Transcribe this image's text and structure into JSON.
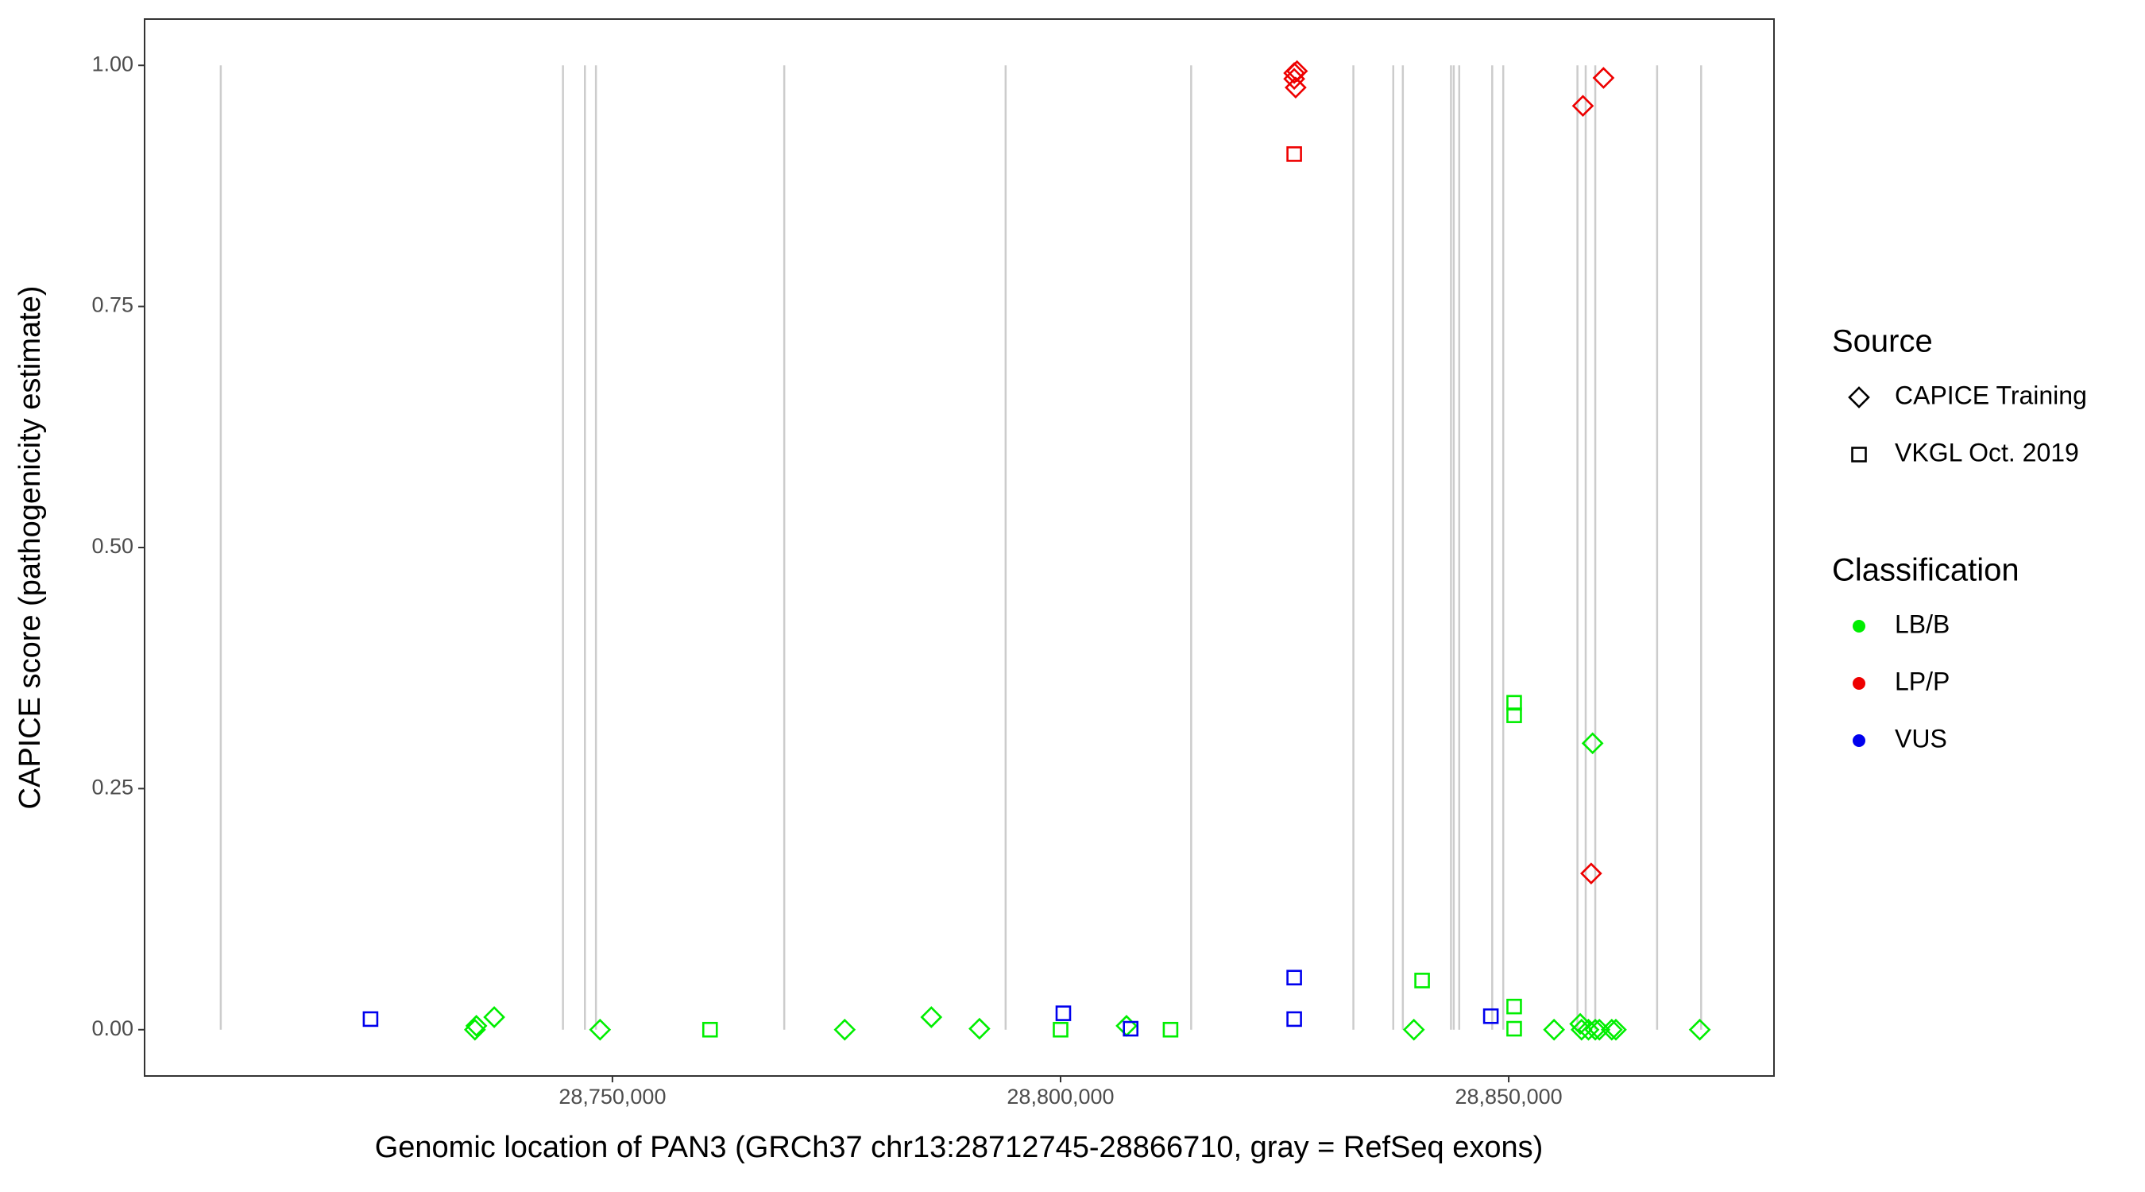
{
  "chart_data": {
    "type": "scatter",
    "x_label": "Genomic location of PAN3 (GRCh37 chr13:28712745-28866710, gray = RefSeq exons)",
    "y_label": "CAPICE score (pathogenicity estimate)",
    "xlim": [
      28697800,
      28879600
    ],
    "ylim": [
      -0.048,
      1.048
    ],
    "xticks": [
      {
        "value": 28750000,
        "label": "28,750,000"
      },
      {
        "value": 28800000,
        "label": "28,800,000"
      },
      {
        "value": 28850000,
        "label": "28,850,000"
      }
    ],
    "yticks": [
      {
        "value": 0,
        "label": "0.00"
      },
      {
        "value": 0.25,
        "label": "0.25"
      },
      {
        "value": 0.5,
        "label": "0.50"
      },
      {
        "value": 0.75,
        "label": "0.75"
      },
      {
        "value": 1,
        "label": "1.00"
      }
    ],
    "grid": false,
    "exon_color": "#cccccc",
    "exon_yrange": [
      0,
      1
    ],
    "exons": [
      28706300,
      28744480,
      28746930,
      28748160,
      28769170,
      28793870,
      28814570,
      28832670,
      28837120,
      28838190,
      28843560,
      28843870,
      28844480,
      28848160,
      28849390,
      28857670,
      28858590,
      28859660,
      28866560,
      28871470
    ],
    "legends": [
      {
        "title": "Source",
        "items": [
          {
            "label": "CAPICE Training",
            "shape": "diamond"
          },
          {
            "label": "VKGL Oct. 2019",
            "shape": "square"
          }
        ]
      },
      {
        "title": "Classification",
        "items": [
          {
            "label": "LB/B",
            "color": "#00ee00"
          },
          {
            "label": "LP/P",
            "color": "#ee0000"
          },
          {
            "label": "VUS",
            "color": "#0000ee"
          }
        ]
      }
    ],
    "series": [
      {
        "source": 0,
        "classification": 0,
        "x": [
          28734660,
          28734820,
          28736810,
          28748620,
          28775920,
          28785580,
          28790950,
          28807360,
          28839420,
          28855060,
          28857980,
          28858130,
          28858900,
          28859360,
          28859660,
          28860120,
          28861500,
          28861960,
          28871320
        ],
        "values": [
          0,
          0.004,
          0.013,
          0,
          0,
          0.013,
          0.001,
          0.004,
          0,
          0,
          0.006,
          0,
          0,
          0.297,
          0,
          0,
          0,
          0,
          0
        ]
      },
      {
        "source": 1,
        "classification": 0,
        "x": [
          28760890,
          28800000,
          28812270,
          28840340,
          28850610,
          28850610,
          28850610,
          28850610
        ],
        "values": [
          0,
          0,
          0,
          0.051,
          0.339,
          0.326,
          0.024,
          0.001
        ]
      },
      {
        "source": 0,
        "classification": 1,
        "x": [
          28826070,
          28826380,
          28826070,
          28826230,
          28858280,
          28860580,
          28859200
        ],
        "values": [
          0.992,
          0.994,
          0.986,
          0.977,
          0.958,
          0.987,
          0.162
        ]
      },
      {
        "source": 1,
        "classification": 1,
        "x": [
          28826070
        ],
        "values": [
          0.908
        ]
      },
      {
        "source": 1,
        "classification": 2,
        "x": [
          28723010,
          28800310,
          28807820,
          28826070,
          28826070,
          28848010
        ],
        "values": [
          0.011,
          0.017,
          0.001,
          0.054,
          0.011,
          0.014
        ]
      }
    ]
  }
}
